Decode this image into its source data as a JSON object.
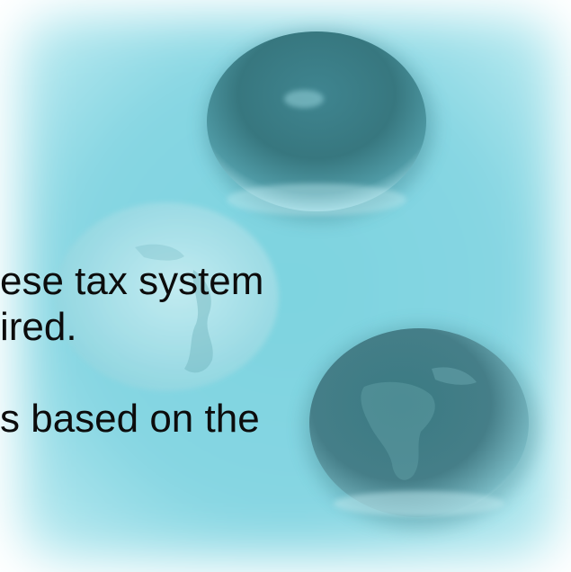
{
  "slide": {
    "lines": [
      "ese tax system",
      "ired.",
      "s based on the"
    ]
  },
  "colors": {
    "background_light": "#aee3ec",
    "background_mid": "#6fcad8",
    "text": "#0c0c0c"
  },
  "icons": [
    "globe-icon",
    "globe-icon",
    "globe-icon"
  ]
}
